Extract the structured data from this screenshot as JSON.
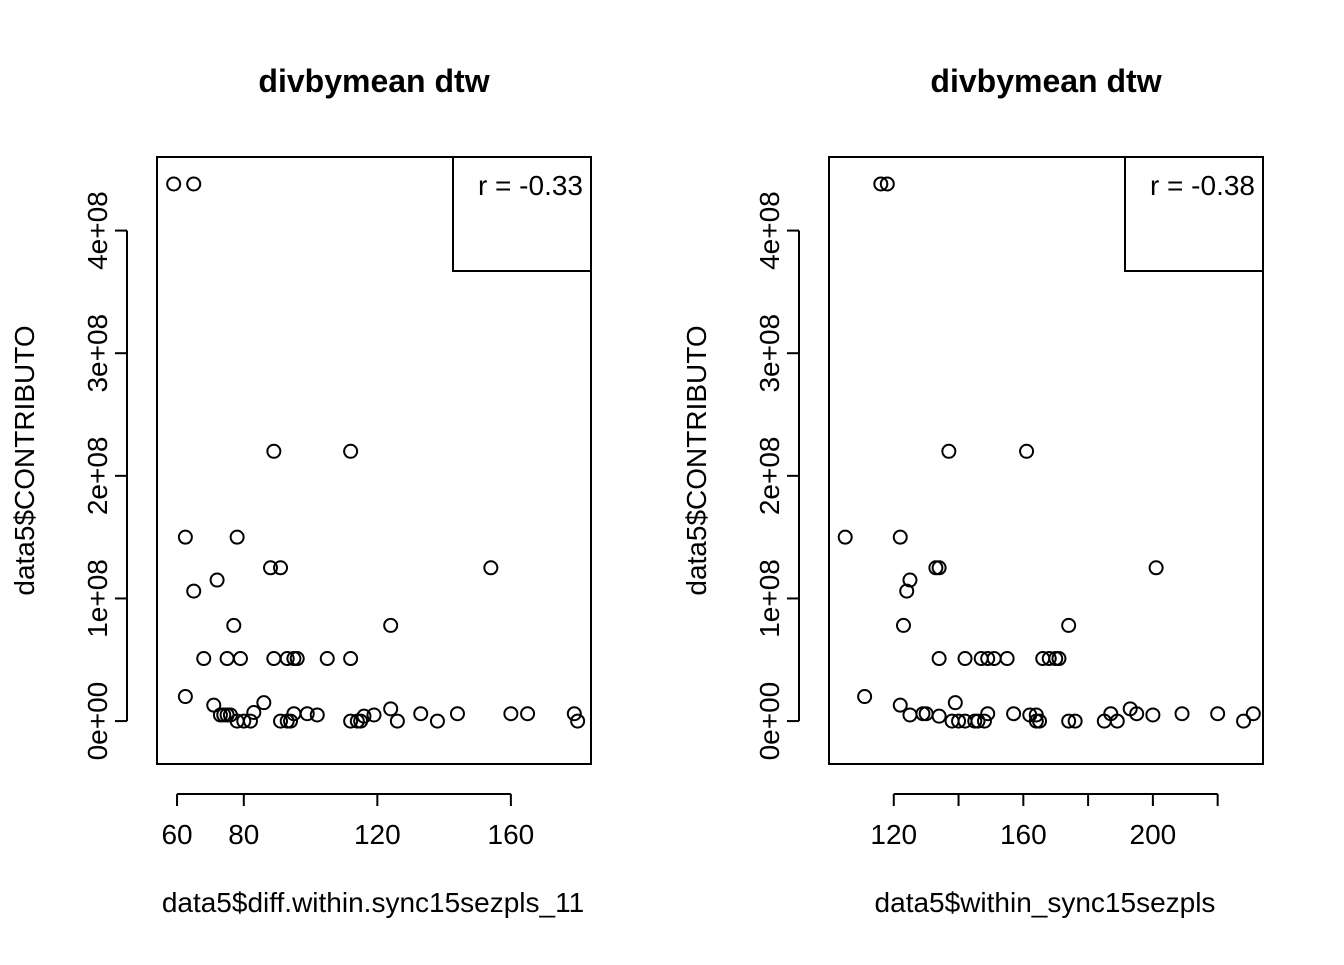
{
  "chart_data": [
    {
      "type": "scatter",
      "title": "divbymean dtw",
      "xlabel": "data5$diff.within.sync15sezpls_11",
      "ylabel": "data5$CONTRIBUTO",
      "xticks": [
        60,
        80,
        120,
        160
      ],
      "xtick_labels": [
        "60",
        "80",
        "120",
        "160"
      ],
      "yticks": [
        0,
        100000000,
        200000000,
        300000000,
        400000000
      ],
      "ytick_labels": [
        "0e+00",
        "1e+08",
        "2e+08",
        "3e+08",
        "4e+08"
      ],
      "xlim": [
        54,
        184
      ],
      "ylim": [
        -35000000,
        460000000
      ],
      "annotation": "r = -0.33",
      "grid": false,
      "points": [
        [
          59,
          438000000
        ],
        [
          65,
          438000000
        ],
        [
          89,
          220000000
        ],
        [
          112,
          220000000
        ],
        [
          62.5,
          150000000
        ],
        [
          78,
          150000000
        ],
        [
          88,
          125000000
        ],
        [
          91,
          125000000
        ],
        [
          154,
          125000000
        ],
        [
          72,
          115000000
        ],
        [
          65,
          106000000
        ],
        [
          77,
          78000000
        ],
        [
          124,
          78000000
        ],
        [
          68,
          51000000
        ],
        [
          75,
          51000000
        ],
        [
          79,
          51000000
        ],
        [
          89,
          51000000
        ],
        [
          93,
          51000000
        ],
        [
          95,
          51000000
        ],
        [
          96,
          51000000
        ],
        [
          105,
          51000000
        ],
        [
          112,
          51000000
        ],
        [
          62.5,
          20000000
        ],
        [
          86,
          15000000
        ],
        [
          71,
          13000000
        ],
        [
          124,
          10000000
        ],
        [
          73,
          5000000
        ],
        [
          74,
          5000000
        ],
        [
          75,
          5000000
        ],
        [
          76,
          5000000
        ],
        [
          83,
          7000000
        ],
        [
          95,
          6000000
        ],
        [
          99,
          6000000
        ],
        [
          102,
          5000000
        ],
        [
          116,
          4000000
        ],
        [
          119,
          5000000
        ],
        [
          133,
          6000000
        ],
        [
          144,
          6000000
        ],
        [
          160,
          6000000
        ],
        [
          165,
          6000000
        ],
        [
          179,
          6000000
        ],
        [
          78,
          0
        ],
        [
          80,
          0
        ],
        [
          82,
          0
        ],
        [
          91,
          0
        ],
        [
          93,
          0
        ],
        [
          94,
          0
        ],
        [
          112,
          0
        ],
        [
          114,
          0
        ],
        [
          115,
          0
        ],
        [
          126,
          0
        ],
        [
          138,
          0
        ],
        [
          180,
          0
        ]
      ]
    },
    {
      "type": "scatter",
      "title": "divbymean dtw",
      "xlabel": "data5$within_sync15sezpls",
      "ylabel": "data5$CONTRIBUTO",
      "xticks": [
        120,
        160,
        200
      ],
      "minor_xticks": [
        140,
        180,
        220
      ],
      "xtick_labels": [
        "120",
        "160",
        "200"
      ],
      "yticks": [
        0,
        100000000,
        200000000,
        300000000,
        400000000
      ],
      "ytick_labels": [
        "0e+00",
        "1e+08",
        "2e+08",
        "3e+08",
        "4e+08"
      ],
      "xlim": [
        100,
        234
      ],
      "ylim": [
        -35000000,
        460000000
      ],
      "annotation": "r = -0.38",
      "grid": false,
      "points": [
        [
          116,
          438000000
        ],
        [
          118,
          438000000
        ],
        [
          137,
          220000000
        ],
        [
          161,
          220000000
        ],
        [
          105,
          150000000
        ],
        [
          122,
          150000000
        ],
        [
          133,
          125000000
        ],
        [
          134,
          125000000
        ],
        [
          201,
          125000000
        ],
        [
          125,
          115000000
        ],
        [
          124,
          106000000
        ],
        [
          123,
          78000000
        ],
        [
          174,
          78000000
        ],
        [
          134,
          51000000
        ],
        [
          142,
          51000000
        ],
        [
          147,
          51000000
        ],
        [
          149,
          51000000
        ],
        [
          151,
          51000000
        ],
        [
          155,
          51000000
        ],
        [
          166,
          51000000
        ],
        [
          168,
          51000000
        ],
        [
          170,
          51000000
        ],
        [
          171,
          51000000
        ],
        [
          111,
          20000000
        ],
        [
          139,
          15000000
        ],
        [
          122,
          13000000
        ],
        [
          193,
          10000000
        ],
        [
          125,
          5000000
        ],
        [
          129,
          6000000
        ],
        [
          130,
          6000000
        ],
        [
          134,
          4000000
        ],
        [
          149,
          6000000
        ],
        [
          157,
          6000000
        ],
        [
          162,
          5000000
        ],
        [
          164,
          5000000
        ],
        [
          187,
          6000000
        ],
        [
          195,
          6000000
        ],
        [
          200,
          5000000
        ],
        [
          209,
          6000000
        ],
        [
          220,
          6000000
        ],
        [
          231,
          6000000
        ],
        [
          138,
          0
        ],
        [
          140,
          0
        ],
        [
          142,
          0
        ],
        [
          145,
          0
        ],
        [
          146,
          0
        ],
        [
          148,
          0
        ],
        [
          164,
          0
        ],
        [
          165,
          0
        ],
        [
          174,
          0
        ],
        [
          176,
          0
        ],
        [
          185,
          0
        ],
        [
          189,
          0
        ],
        [
          228,
          0
        ]
      ]
    }
  ]
}
